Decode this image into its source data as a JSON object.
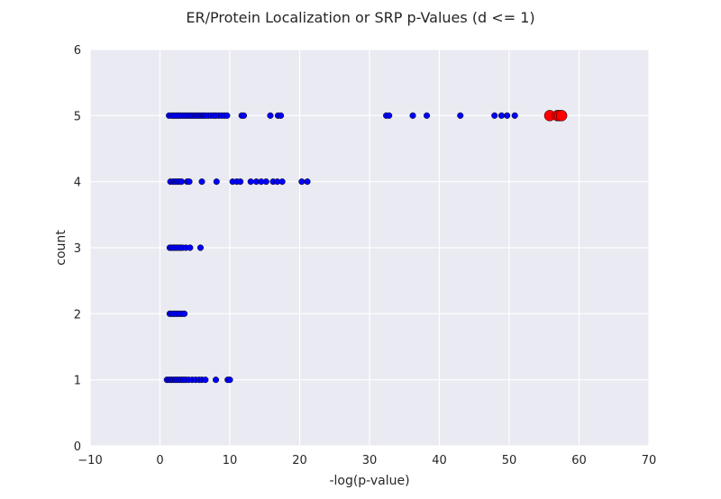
{
  "chart_data": {
    "type": "scatter",
    "title": "ER/Protein Localization or SRP p-Values (d <= 1)",
    "xlabel": "-log(p-value)",
    "ylabel": "count",
    "xlim": [
      -10,
      70
    ],
    "ylim": [
      0,
      6
    ],
    "xticks": [
      -10,
      0,
      10,
      20,
      30,
      40,
      50,
      60,
      70
    ],
    "yticks": [
      0,
      1,
      2,
      3,
      4,
      5,
      6
    ],
    "grid": true,
    "background": "#eaeaf2",
    "series": [
      {
        "color": "#0000ff",
        "marker": "small-circle",
        "points": [
          [
            1.3,
            5
          ],
          [
            1.7,
            5
          ],
          [
            2.0,
            5
          ],
          [
            2.3,
            5
          ],
          [
            2.6,
            5
          ],
          [
            2.9,
            5
          ],
          [
            3.2,
            5
          ],
          [
            3.5,
            5
          ],
          [
            3.8,
            5
          ],
          [
            4.1,
            5
          ],
          [
            4.4,
            5
          ],
          [
            4.7,
            5
          ],
          [
            5.0,
            5
          ],
          [
            5.3,
            5
          ],
          [
            5.6,
            5
          ],
          [
            5.9,
            5
          ],
          [
            6.2,
            5
          ],
          [
            6.5,
            5
          ],
          [
            6.9,
            5
          ],
          [
            7.3,
            5
          ],
          [
            7.7,
            5
          ],
          [
            8.0,
            5
          ],
          [
            8.4,
            5
          ],
          [
            8.8,
            5
          ],
          [
            9.2,
            5
          ],
          [
            9.6,
            5
          ],
          [
            11.7,
            5
          ],
          [
            12.0,
            5
          ],
          [
            15.8,
            5
          ],
          [
            16.9,
            5
          ],
          [
            17.3,
            5
          ],
          [
            32.4,
            5
          ],
          [
            32.8,
            5
          ],
          [
            36.2,
            5
          ],
          [
            38.2,
            5
          ],
          [
            43.0,
            5
          ],
          [
            47.9,
            5
          ],
          [
            48.9,
            5
          ],
          [
            49.7,
            5
          ],
          [
            50.8,
            5
          ],
          [
            1.5,
            4
          ],
          [
            1.9,
            4
          ],
          [
            2.2,
            4
          ],
          [
            2.5,
            4
          ],
          [
            2.8,
            4
          ],
          [
            3.1,
            4
          ],
          [
            3.9,
            4
          ],
          [
            4.2,
            4
          ],
          [
            6.0,
            4
          ],
          [
            8.1,
            4
          ],
          [
            10.4,
            4
          ],
          [
            11.0,
            4
          ],
          [
            11.5,
            4
          ],
          [
            13.0,
            4
          ],
          [
            13.8,
            4
          ],
          [
            14.5,
            4
          ],
          [
            15.2,
            4
          ],
          [
            16.2,
            4
          ],
          [
            16.8,
            4
          ],
          [
            17.5,
            4
          ],
          [
            20.3,
            4
          ],
          [
            21.1,
            4
          ],
          [
            1.4,
            3
          ],
          [
            1.7,
            3
          ],
          [
            2.0,
            3
          ],
          [
            2.3,
            3
          ],
          [
            2.6,
            3
          ],
          [
            2.9,
            3
          ],
          [
            3.2,
            3
          ],
          [
            3.7,
            3
          ],
          [
            4.3,
            3
          ],
          [
            5.8,
            3
          ],
          [
            1.4,
            2
          ],
          [
            1.7,
            2
          ],
          [
            2.0,
            2
          ],
          [
            2.3,
            2
          ],
          [
            2.6,
            2
          ],
          [
            2.9,
            2
          ],
          [
            3.2,
            2
          ],
          [
            3.5,
            2
          ],
          [
            1.0,
            1
          ],
          [
            1.3,
            1
          ],
          [
            1.6,
            1
          ],
          [
            1.9,
            1
          ],
          [
            2.2,
            1
          ],
          [
            2.5,
            1
          ],
          [
            2.8,
            1
          ],
          [
            3.1,
            1
          ],
          [
            3.4,
            1
          ],
          [
            3.7,
            1
          ],
          [
            4.1,
            1
          ],
          [
            4.6,
            1
          ],
          [
            5.1,
            1
          ],
          [
            5.6,
            1
          ],
          [
            6.0,
            1
          ],
          [
            6.5,
            1
          ],
          [
            8.0,
            1
          ],
          [
            9.7,
            1
          ],
          [
            10.0,
            1
          ]
        ]
      },
      {
        "color": "#ff0000",
        "marker": "large-circle",
        "points": [
          [
            55.8,
            5
          ],
          [
            56.9,
            5
          ],
          [
            57.2,
            5
          ],
          [
            57.5,
            5
          ]
        ]
      }
    ]
  }
}
